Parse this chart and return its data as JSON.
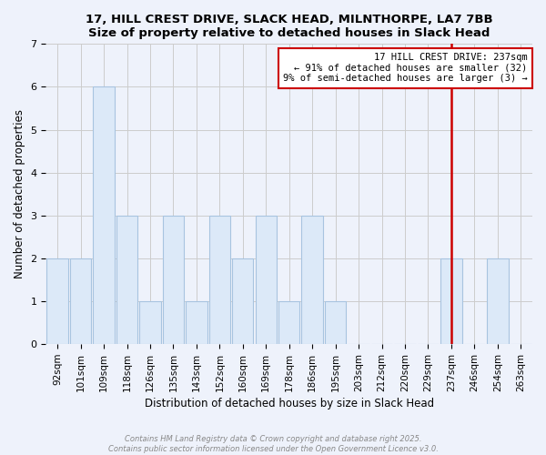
{
  "title": "17, HILL CREST DRIVE, SLACK HEAD, MILNTHORPE, LA7 7BB",
  "subtitle": "Size of property relative to detached houses in Slack Head",
  "xlabel": "Distribution of detached houses by size in Slack Head",
  "ylabel": "Number of detached properties",
  "bin_labels": [
    "92sqm",
    "101sqm",
    "109sqm",
    "118sqm",
    "126sqm",
    "135sqm",
    "143sqm",
    "152sqm",
    "160sqm",
    "169sqm",
    "178sqm",
    "186sqm",
    "195sqm",
    "203sqm",
    "212sqm",
    "220sqm",
    "229sqm",
    "237sqm",
    "246sqm",
    "254sqm",
    "263sqm"
  ],
  "bar_heights": [
    2,
    2,
    6,
    3,
    1,
    3,
    1,
    3,
    2,
    3,
    1,
    3,
    1,
    0,
    0,
    0,
    0,
    2,
    0,
    2,
    0
  ],
  "bar_color": "#dce9f8",
  "bar_edge_color": "#a8c4e0",
  "vline_x_index": 17,
  "vline_color": "#cc0000",
  "annotation_title": "17 HILL CREST DRIVE: 237sqm",
  "annotation_line1": "← 91% of detached houses are smaller (32)",
  "annotation_line2": "9% of semi-detached houses are larger (3) →",
  "annotation_box_color": "#ffffff",
  "annotation_box_edge": "#cc0000",
  "ylim": [
    0,
    7
  ],
  "yticks": [
    0,
    1,
    2,
    3,
    4,
    5,
    6,
    7
  ],
  "grid_color": "#cccccc",
  "bg_color": "#eef2fb",
  "footer_line1": "Contains HM Land Registry data © Crown copyright and database right 2025.",
  "footer_line2": "Contains public sector information licensed under the Open Government Licence v3.0.",
  "footer_color": "#888888"
}
